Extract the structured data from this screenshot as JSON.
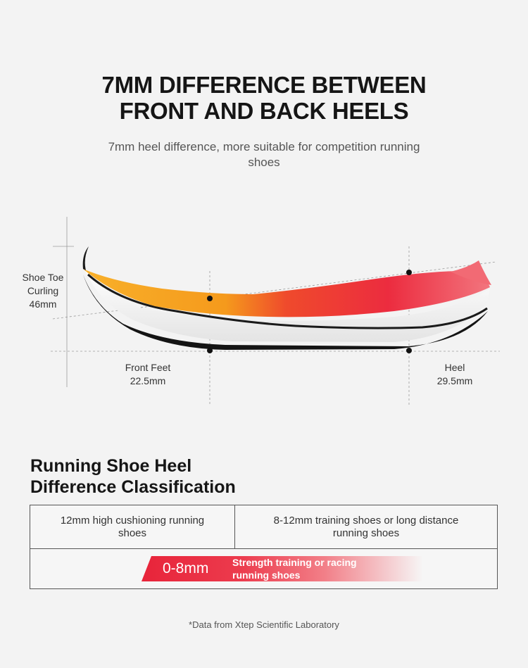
{
  "header": {
    "title_line1": "7MM DIFFERENCE BETWEEN",
    "title_line2": "FRONT AND BACK HEELS",
    "subtitle": "7mm heel difference, more suitable for competition running shoes"
  },
  "diagram": {
    "toe_label": "Shoe Toe Curling",
    "toe_value": "46mm",
    "front_label": "Front Feet",
    "front_value": "22.5mm",
    "heel_label": "Heel",
    "heel_value": "29.5mm",
    "colors": {
      "orange": "#f7a21d",
      "red": "#ee2a3c",
      "pink": "#f6b2b5",
      "sole_white": "#ffffff",
      "outsole": "#111111"
    }
  },
  "classification": {
    "title_line1": "Running Shoe Heel",
    "title_line2": "Difference Classification",
    "cell_a": "12mm high cushioning running shoes",
    "cell_b": "8-12mm training shoes or long distance running shoes",
    "highlight_range": "0-8mm",
    "highlight_text_line1": "Strength training or racing",
    "highlight_text_line2": "running shoes",
    "accent_color": "#e8243a"
  },
  "footnote": "*Data from Xtep Scientific Laboratory"
}
